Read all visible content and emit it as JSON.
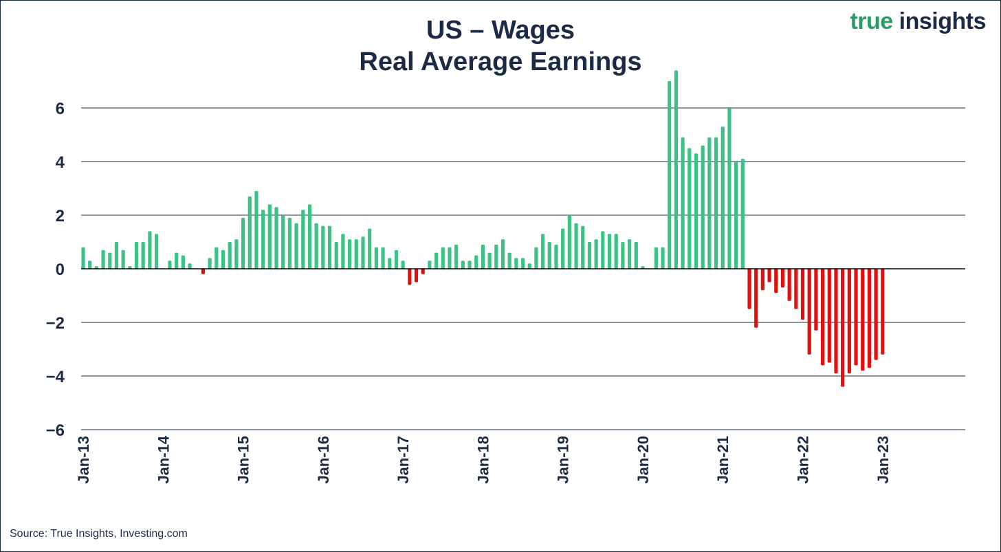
{
  "title_line1": "US – Wages",
  "title_line2": "Real Average Earnings",
  "brand": {
    "part1": "true",
    "part2": "insights"
  },
  "source": "Source: True Insights, Investing.com",
  "chart_data": {
    "type": "bar",
    "title": "US – Wages Real Average Earnings",
    "ylim": [
      -6,
      8
    ],
    "yticks": [
      6,
      4,
      2,
      0,
      -2,
      -4,
      -6
    ],
    "ytick_labels": [
      "6",
      "4",
      "2",
      "0",
      "−2",
      "−4",
      "−6"
    ],
    "x_start": "Jan-13",
    "x_end": "Jan-23",
    "xtick_labels": [
      "Jan-13",
      "Jan-14",
      "Jan-15",
      "Jan-16",
      "Jan-17",
      "Jan-18",
      "Jan-19",
      "Jan-20",
      "Jan-21",
      "Jan-22",
      "Jan-23"
    ],
    "grid": true,
    "positive_color": "#3cc285",
    "negative_color": "#e01010",
    "values": [
      0.8,
      0.3,
      0.1,
      0.7,
      0.6,
      1.0,
      0.7,
      0.1,
      1.0,
      1.0,
      1.4,
      1.3,
      0.0,
      0.3,
      0.6,
      0.5,
      0.2,
      0.0,
      -0.2,
      0.4,
      0.8,
      0.7,
      1.0,
      1.1,
      1.9,
      2.7,
      2.9,
      2.2,
      2.4,
      2.3,
      2.0,
      1.9,
      1.7,
      2.2,
      2.4,
      1.7,
      1.6,
      1.6,
      1.0,
      1.3,
      1.1,
      1.1,
      1.2,
      1.5,
      0.8,
      0.8,
      0.4,
      0.7,
      0.3,
      -0.6,
      -0.5,
      -0.2,
      0.3,
      0.6,
      0.8,
      0.8,
      0.9,
      0.3,
      0.3,
      0.5,
      0.9,
      0.6,
      0.9,
      1.1,
      0.6,
      0.4,
      0.4,
      0.2,
      0.8,
      1.3,
      1.0,
      0.9,
      1.5,
      2.0,
      1.7,
      1.6,
      1.0,
      1.1,
      1.4,
      1.3,
      1.3,
      1.0,
      1.1,
      1.0,
      0.1,
      0.0,
      0.8,
      0.8,
      7.0,
      7.4,
      4.9,
      4.5,
      4.3,
      4.6,
      4.9,
      4.9,
      5.3,
      6.0,
      4.0,
      4.1,
      -1.5,
      -2.2,
      -0.8,
      -0.5,
      -0.9,
      -0.7,
      -1.2,
      -1.5,
      -1.9,
      -3.2,
      -2.3,
      -3.6,
      -3.5,
      -3.9,
      -4.4,
      -3.9,
      -3.6,
      -3.8,
      -3.7,
      -3.4,
      -3.2
    ]
  }
}
